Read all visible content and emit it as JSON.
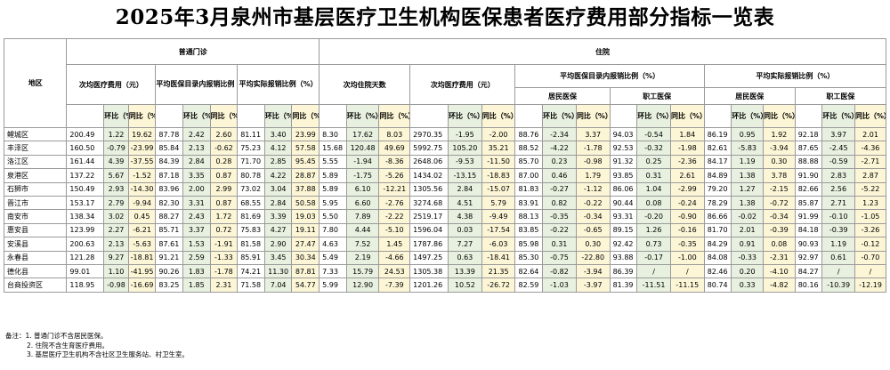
{
  "title": "2025年3月泉州市基层医疗卫生机构医保患者医疗费用部分指标一览表",
  "headers": {
    "region": "地区",
    "outpatient": "普通门诊",
    "inpatient": "住院",
    "op_cost": "次均医疗费用（元）",
    "op_catalog_ratio": "平均医保目录内报销比例（%）",
    "op_actual_ratio": "平均实际报销比例（%）",
    "ip_days": "次均住院天数",
    "ip_cost": "次均医疗费用（元）",
    "ip_catalog_ratio": "平均医保目录内报销比例（%）",
    "ip_actual_ratio": "平均实际报销比例（%）",
    "resident": "居民医保",
    "employee": "职工医保",
    "mom": "环比（%）",
    "yoy": "同比（%）"
  },
  "rows": [
    {
      "name": "鲤城区",
      "values": [
        "200.49",
        "1.22",
        "19.62",
        "87.78",
        "2.42",
        "2.60",
        "81.11",
        "3.40",
        "23.99",
        "8.30",
        "17.62",
        "8.03",
        "2970.35",
        "-1.95",
        "-2.00",
        "88.76",
        "-2.34",
        "3.37",
        "94.03",
        "-0.54",
        "1.84",
        "86.19",
        "0.95",
        "1.92",
        "92.18",
        "3.97",
        "2.01"
      ]
    },
    {
      "name": "丰泽区",
      "values": [
        "160.50",
        "-0.79",
        "-23.99",
        "85.84",
        "2.13",
        "-0.62",
        "75.23",
        "4.12",
        "57.58",
        "15.68",
        "120.48",
        "49.69",
        "5992.75",
        "105.20",
        "35.21",
        "88.52",
        "-4.22",
        "-1.78",
        "92.53",
        "-0.32",
        "-1.98",
        "82.61",
        "-5.83",
        "-3.94",
        "87.65",
        "-2.45",
        "-4.36"
      ]
    },
    {
      "name": "洛江区",
      "values": [
        "161.44",
        "4.39",
        "-37.55",
        "84.39",
        "2.84",
        "0.28",
        "71.70",
        "2.85",
        "95.45",
        "5.55",
        "-1.94",
        "-8.36",
        "2648.06",
        "-9.53",
        "-11.50",
        "85.70",
        "0.23",
        "-0.98",
        "91.32",
        "0.25",
        "-2.36",
        "84.17",
        "1.19",
        "0.30",
        "88.88",
        "-0.59",
        "-2.71"
      ]
    },
    {
      "name": "泉港区",
      "values": [
        "137.22",
        "5.67",
        "-1.52",
        "87.18",
        "3.35",
        "0.87",
        "80.78",
        "4.22",
        "28.87",
        "5.89",
        "-1.75",
        "-5.26",
        "1434.02",
        "-13.15",
        "-18.83",
        "87.00",
        "0.46",
        "1.79",
        "93.85",
        "0.31",
        "2.61",
        "84.89",
        "1.38",
        "3.78",
        "91.90",
        "2.83",
        "2.87"
      ]
    },
    {
      "name": "石狮市",
      "values": [
        "150.49",
        "2.93",
        "-14.30",
        "83.96",
        "2.00",
        "2.99",
        "73.02",
        "3.04",
        "37.88",
        "5.89",
        "6.10",
        "-12.21",
        "1305.56",
        "2.84",
        "-15.07",
        "81.83",
        "-0.27",
        "-1.12",
        "86.06",
        "1.04",
        "-2.99",
        "79.20",
        "1.27",
        "-2.15",
        "82.66",
        "2.56",
        "-5.22"
      ]
    },
    {
      "name": "晋江市",
      "values": [
        "153.17",
        "2.79",
        "-9.94",
        "82.30",
        "3.31",
        "0.87",
        "68.55",
        "2.84",
        "50.58",
        "5.95",
        "6.60",
        "-2.76",
        "3274.68",
        "4.51",
        "5.79",
        "83.91",
        "0.82",
        "-0.22",
        "90.44",
        "0.08",
        "-0.24",
        "78.29",
        "1.38",
        "-0.72",
        "85.87",
        "2.71",
        "1.23"
      ]
    },
    {
      "name": "南安市",
      "values": [
        "138.34",
        "3.02",
        "0.45",
        "88.27",
        "2.43",
        "1.72",
        "81.69",
        "3.39",
        "19.03",
        "5.50",
        "7.89",
        "-2.22",
        "2519.17",
        "4.38",
        "-9.49",
        "88.13",
        "-0.35",
        "-0.34",
        "93.31",
        "-0.20",
        "-0.90",
        "86.66",
        "-0.02",
        "-0.34",
        "91.99",
        "-0.10",
        "-1.05"
      ]
    },
    {
      "name": "惠安县",
      "values": [
        "123.99",
        "2.27",
        "-6.21",
        "85.71",
        "3.37",
        "0.72",
        "75.83",
        "4.27",
        "19.11",
        "7.80",
        "4.44",
        "-5.10",
        "1596.04",
        "0.03",
        "-17.54",
        "83.85",
        "-0.22",
        "-0.65",
        "89.15",
        "1.26",
        "-0.16",
        "81.70",
        "2.01",
        "-0.39",
        "84.18",
        "-0.39",
        "-3.26"
      ]
    },
    {
      "name": "安溪县",
      "values": [
        "200.63",
        "2.13",
        "-5.63",
        "87.61",
        "1.53",
        "-1.91",
        "81.58",
        "2.90",
        "27.47",
        "4.63",
        "7.52",
        "1.45",
        "1787.86",
        "7.27",
        "-6.03",
        "85.98",
        "0.31",
        "0.30",
        "92.42",
        "0.73",
        "-0.35",
        "84.29",
        "0.91",
        "0.08",
        "90.93",
        "1.19",
        "-0.12"
      ]
    },
    {
      "name": "永春县",
      "values": [
        "121.28",
        "9.27",
        "-18.81",
        "91.21",
        "2.59",
        "-1.33",
        "85.91",
        "3.45",
        "30.34",
        "5.49",
        "2.19",
        "-4.66",
        "1497.25",
        "0.63",
        "-18.41",
        "85.30",
        "-0.75",
        "-22.80",
        "93.88",
        "-0.17",
        "-1.00",
        "84.08",
        "-0.33",
        "-2.31",
        "92.97",
        "0.61",
        "-0.70"
      ]
    },
    {
      "name": "德化县",
      "values": [
        "99.01",
        "1.10",
        "-41.95",
        "90.26",
        "1.83",
        "-1.78",
        "74.21",
        "11.30",
        "87.81",
        "7.33",
        "15.79",
        "24.53",
        "1305.38",
        "13.39",
        "21.35",
        "82.64",
        "-0.82",
        "-3.94",
        "86.39",
        "/",
        "/",
        "82.46",
        "0.20",
        "-4.10",
        "84.27",
        "/",
        "/"
      ]
    },
    {
      "name": "台商投资区",
      "values": [
        "118.95",
        "-0.98",
        "-16.69",
        "83.25",
        "1.85",
        "2.31",
        "71.58",
        "7.04",
        "54.77",
        "5.99",
        "12.90",
        "-7.39",
        "1201.26",
        "10.52",
        "-26.72",
        "82.59",
        "-1.03",
        "-3.97",
        "81.39",
        "-11.51",
        "-11.15",
        "80.74",
        "0.33",
        "-4.82",
        "80.16",
        "-10.39",
        "-12.19"
      ]
    }
  ],
  "notes": [
    "备注：1. 普通门诊不含居民医保。",
    "2. 住院不含生育医疗费用。",
    "3. 基层医疗卫生机构不含社区卫生服务站、村卫生室。"
  ],
  "colors": {
    "mom_cell": "#e8f1e0",
    "yoy_cell": "#fdf6d6",
    "border": "#9a9a9a"
  }
}
